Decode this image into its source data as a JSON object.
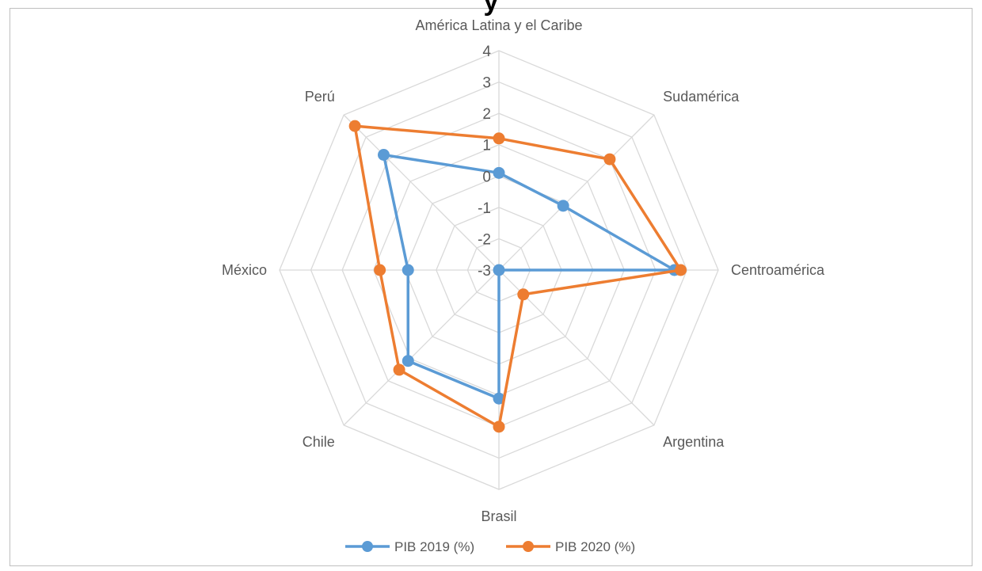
{
  "title": "y",
  "chart_data": {
    "type": "radar",
    "title": "y",
    "categories": [
      "América Latina y el Caribe",
      "Sudamérica",
      "Centroamérica",
      "Argentina",
      "Brasil",
      "Chile",
      "México",
      "Perú"
    ],
    "r_ticks": [
      4,
      3,
      2,
      1,
      0,
      -1,
      -2,
      -3
    ],
    "rlim": [
      -3,
      4
    ],
    "grid": true,
    "legend_position": "bottom",
    "series": [
      {
        "name": "PIB 2019 (%)",
        "color": "#5B9BD5",
        "values": [
          0.1,
          -0.1,
          2.6,
          -3.0,
          1.1,
          1.1,
          -0.1,
          2.2
        ]
      },
      {
        "name": "PIB 2020 (%)",
        "color": "#ED7D31",
        "values": [
          1.2,
          2.0,
          2.8,
          -1.9,
          2.0,
          1.5,
          0.8,
          3.5
        ]
      }
    ]
  }
}
